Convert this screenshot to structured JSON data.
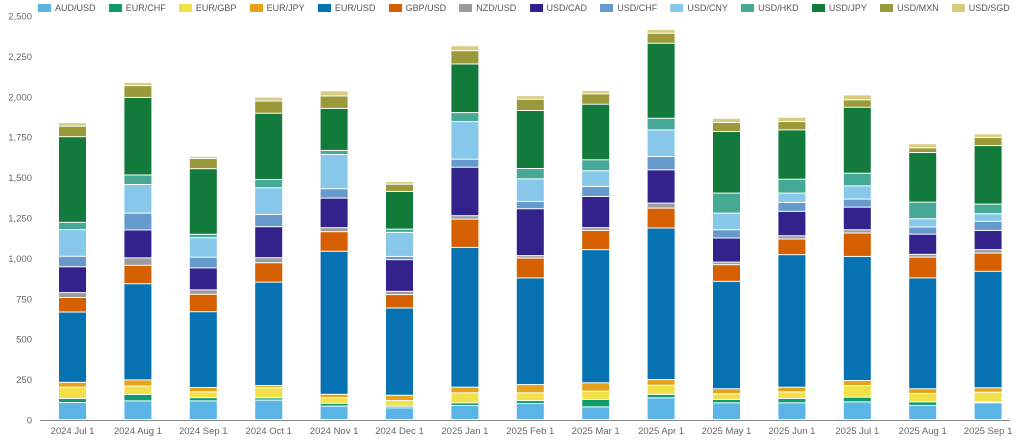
{
  "chart_data": {
    "type": "bar",
    "stacked": true,
    "title": "",
    "xlabel": "",
    "ylabel": "",
    "ylim": [
      0,
      2500
    ],
    "yticks": [
      0,
      250,
      500,
      750,
      1000,
      1250,
      1500,
      1750,
      2000,
      2250,
      2500
    ],
    "ytick_labels": [
      "0",
      "250",
      "500",
      "750",
      "1,000",
      "1,250",
      "1,500",
      "1,750",
      "2,000",
      "2,250",
      "2,500"
    ],
    "grid": false,
    "legend_position": "top",
    "categories": [
      "2024 Jul 1",
      "2024 Aug 1",
      "2024 Sep 1",
      "2024 Oct 1",
      "2024 Nov 1",
      "2024 Dec 1",
      "2025 Jan 1",
      "2025 Feb 1",
      "2025 Mar 1",
      "2025 Apr 1",
      "2025 May 1",
      "2025 Jun 1",
      "2025 Jul 1",
      "2025 Aug 1",
      "2025 Sep 1"
    ],
    "series": [
      {
        "name": "AUD/USD",
        "color": "#5ab4e6",
        "values": [
          105,
          115,
          115,
          120,
          83,
          72,
          87,
          99,
          78,
          134,
          103,
          103,
          109,
          87,
          103
        ]
      },
      {
        "name": "EUR/CHF",
        "color": "#0e9c6e",
        "values": [
          25,
          40,
          20,
          14,
          17,
          10,
          16,
          18,
          46,
          21,
          21,
          27,
          29,
          22,
          6
        ]
      },
      {
        "name": "EUR/GBP",
        "color": "#f1e048",
        "values": [
          70,
          52,
          36,
          62,
          35,
          35,
          62,
          48,
          51,
          57,
          35,
          41,
          72,
          52,
          60
        ]
      },
      {
        "name": "EUR/JPY",
        "color": "#e6a21b",
        "values": [
          30,
          38,
          27,
          14,
          21,
          33,
          35,
          51,
          52,
          35,
          31,
          29,
          31,
          29,
          27
        ]
      },
      {
        "name": "EUR/USD",
        "color": "#0672b1",
        "values": [
          435,
          595,
          469,
          640,
          885,
          540,
          865,
          660,
          824,
          938,
          665,
          820,
          768,
          686,
          721
        ]
      },
      {
        "name": "GBP/USD",
        "color": "#d65f00",
        "values": [
          90,
          114,
          108,
          120,
          121,
          83,
          175,
          123,
          119,
          123,
          103,
          97,
          145,
          129,
          113
        ]
      },
      {
        "name": "NZD/USD",
        "color": "#9c9c9c",
        "values": [
          30,
          46,
          27,
          31,
          25,
          20,
          21,
          15,
          17,
          31,
          16,
          20,
          20,
          17,
          21
        ]
      },
      {
        "name": "USD/CAD",
        "color": "#33228c",
        "values": [
          160,
          173,
          136,
          192,
          183,
          196,
          300,
          290,
          193,
          206,
          149,
          151,
          140,
          125,
          119
        ]
      },
      {
        "name": "USD/CHF",
        "color": "#6699cc",
        "values": [
          65,
          104,
          66,
          76,
          58,
          20,
          50,
          45,
          62,
          82,
          51,
          55,
          50,
          44,
          56
        ]
      },
      {
        "name": "USD/CNY",
        "color": "#87c8ea",
        "values": [
          165,
          177,
          121,
          165,
          212,
          149,
          233,
          140,
          97,
          165,
          103,
          58,
          82,
          51,
          47
        ]
      },
      {
        "name": "USD/HKD",
        "color": "#45a996",
        "values": [
          45,
          59,
          21,
          51,
          25,
          20,
          55,
          64,
          68,
          72,
          124,
          86,
          78,
          103,
          60
        ]
      },
      {
        "name": "USD/JPY",
        "color": "#127a3a",
        "values": [
          530,
          480,
          406,
          410,
          260,
          233,
          301,
          359,
          344,
          464,
          381,
          305,
          408,
          307,
          362
        ]
      },
      {
        "name": "USD/MXN",
        "color": "#9a9a3a",
        "values": [
          65,
          73,
          63,
          76,
          77,
          45,
          82,
          70,
          64,
          62,
          56,
          52,
          46,
          29,
          50
        ]
      },
      {
        "name": "USD/SGD",
        "color": "#d8cc80",
        "values": [
          22,
          20,
          14,
          24,
          32,
          17,
          31,
          22,
          20,
          24,
          26,
          26,
          31,
          25,
          23
        ]
      }
    ]
  }
}
